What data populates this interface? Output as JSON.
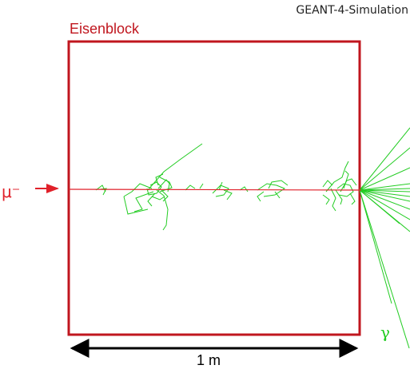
{
  "header": {
    "simulation_label": "GEANT-4-Simulation"
  },
  "block": {
    "label": "Eisenblock"
  },
  "beam": {
    "particle_label": "μ⁻"
  },
  "emission": {
    "photon_label": "γ"
  },
  "scale": {
    "length_label": "1 m"
  },
  "colors": {
    "block": "#c0161e",
    "beam": "#e0202a",
    "tracks": "#22cc22",
    "text": "#000000"
  }
}
